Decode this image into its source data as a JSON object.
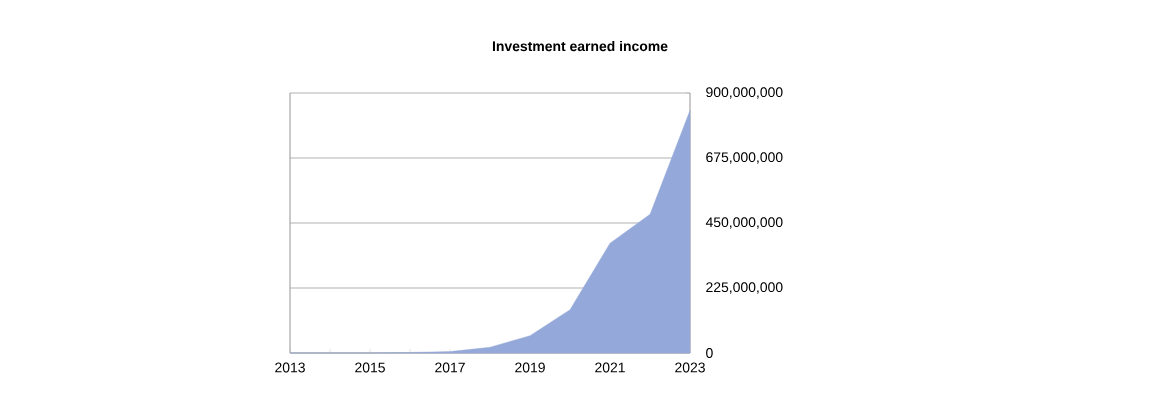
{
  "chart_data": {
    "type": "area",
    "title": "Investment earned income",
    "categories": [
      "2013",
      null,
      "2015",
      null,
      "2017",
      null,
      "2019",
      null,
      "2021",
      null,
      "2023"
    ],
    "series": [
      {
        "color": "#94a9d9",
        "values": [
          0,
          0,
          0,
          2000000,
          5000000,
          20000000,
          60000000,
          150000000,
          380000000,
          480000000,
          840000000
        ]
      }
    ],
    "ylim": [
      0,
      900000000
    ],
    "yticks": [
      {
        "value": 0,
        "label": "0"
      },
      {
        "value": 225000000,
        "label": "225,000,000"
      },
      {
        "value": 450000000,
        "label": "450,000,000"
      },
      {
        "value": 675000000,
        "label": "675,000,000"
      },
      {
        "value": 900000000,
        "label": "900,000,000"
      }
    ],
    "grid": "y"
  }
}
